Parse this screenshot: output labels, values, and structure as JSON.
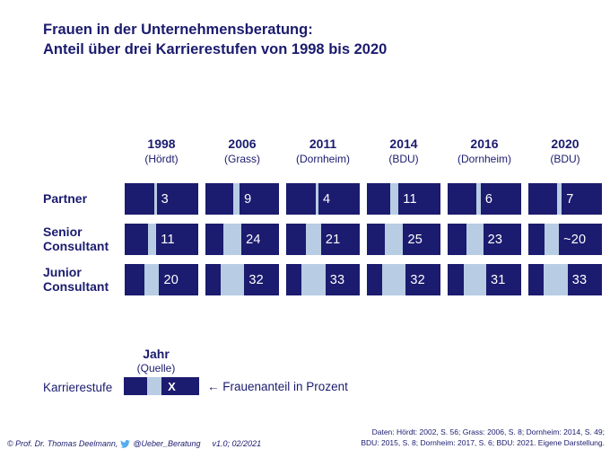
{
  "title": {
    "line1": "Frauen in der Unternehmensberatung:",
    "line2": "Anteil über drei Karrierestufen von 1998 bis 2020"
  },
  "chart_data": {
    "type": "bar",
    "title": "Frauen in der Unternehmensberatung: Anteil über drei Karrierestufen von 1998 bis 2020",
    "value_unit": "Frauenanteil in Prozent",
    "value_range": [
      0,
      100
    ],
    "orientation": "horizontal-band",
    "categories": [
      {
        "year": "1998",
        "source": "(Hördt)"
      },
      {
        "year": "2006",
        "source": "(Grass)"
      },
      {
        "year": "2011",
        "source": "(Dornheim)"
      },
      {
        "year": "2014",
        "source": "(BDU)"
      },
      {
        "year": "2016",
        "source": "(Dornheim)"
      },
      {
        "year": "2020",
        "source": "(BDU)"
      }
    ],
    "series": [
      {
        "name": "Partner",
        "cells": [
          {
            "label": "3",
            "value": 3
          },
          {
            "label": "9",
            "value": 9
          },
          {
            "label": "4",
            "value": 4
          },
          {
            "label": "11",
            "value": 11
          },
          {
            "label": "6",
            "value": 6
          },
          {
            "label": "7",
            "value": 7
          }
        ]
      },
      {
        "name": "Senior Consultant",
        "cells": [
          {
            "label": "11",
            "value": 11
          },
          {
            "label": "24",
            "value": 24
          },
          {
            "label": "21",
            "value": 21
          },
          {
            "label": "25",
            "value": 25
          },
          {
            "label": "23",
            "value": 23
          },
          {
            "label": "~20",
            "value": 20
          }
        ]
      },
      {
        "name": "Junior Consultant",
        "cells": [
          {
            "label": "20",
            "value": 20
          },
          {
            "label": "32",
            "value": 32
          },
          {
            "label": "33",
            "value": 33
          },
          {
            "label": "32",
            "value": 32
          },
          {
            "label": "31",
            "value": 31
          },
          {
            "label": "33",
            "value": 33
          }
        ]
      }
    ],
    "colors": {
      "bar_dark": "#1b1b6f",
      "bar_light": "#b8cce4",
      "value_text": "#ffffff"
    }
  },
  "legend": {
    "jahr": "Jahr",
    "quelle": "(Quelle)",
    "karrierestufe": "Karrierestufe",
    "sample_value": "X",
    "annotation": "← Frauenanteil in Prozent"
  },
  "footer": {
    "copyright": "© Prof. Dr. Thomas Deelmann,",
    "twitter_handle": "@Ueber_Beratung",
    "version": "v1.0; 02/2021",
    "source_line1": "Daten: Hördt: 2002, S. 56; Grass: 2006, S. 8; Dornheim: 2014, S. 49;",
    "source_line2": "BDU: 2015, S. 8; Dornheim: 2017, S. 6; BDU: 2021. Eigene Darstellung."
  }
}
